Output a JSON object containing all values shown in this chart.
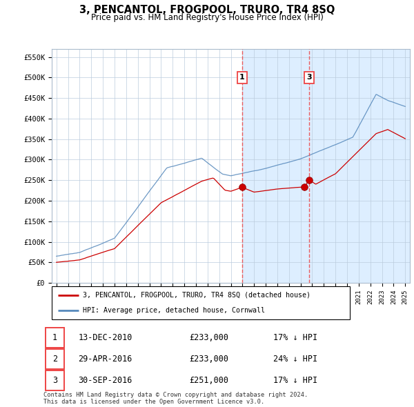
{
  "title": "3, PENCANTOL, FROGPOOL, TRURO, TR4 8SQ",
  "subtitle": "Price paid vs. HM Land Registry's House Price Index (HPI)",
  "ylim": [
    0,
    570000
  ],
  "yticks": [
    0,
    50000,
    100000,
    150000,
    200000,
    250000,
    300000,
    350000,
    400000,
    450000,
    500000,
    550000
  ],
  "ytick_labels": [
    "£0",
    "£50K",
    "£100K",
    "£150K",
    "£200K",
    "£250K",
    "£300K",
    "£350K",
    "£400K",
    "£450K",
    "£500K",
    "£550K"
  ],
  "red_line_color": "#cc0000",
  "blue_line_color": "#5588bb",
  "vline_color": "#ee4444",
  "shade_color": "#ddeeff",
  "legend_label_red": "3, PENCANTOL, FROGPOOL, TRURO, TR4 8SQ (detached house)",
  "legend_label_blue": "HPI: Average price, detached house, Cornwall",
  "transactions": [
    {
      "id": 1,
      "date": "13-DEC-2010",
      "price": 233000,
      "pct": "17%",
      "dir": "↓"
    },
    {
      "id": 2,
      "date": "29-APR-2016",
      "price": 233000,
      "pct": "24%",
      "dir": "↓"
    },
    {
      "id": 3,
      "date": "30-SEP-2016",
      "price": 251000,
      "pct": "17%",
      "dir": "↓"
    }
  ],
  "footer": "Contains HM Land Registry data © Crown copyright and database right 2024.\nThis data is licensed under the Open Government Licence v3.0.",
  "vline1": 2010.96,
  "vline2": 2016.75,
  "sale1_x": 2010.96,
  "sale1_y": 233000,
  "sale2_x": 2016.33,
  "sale2_y": 233000,
  "sale3_x": 2016.75,
  "sale3_y": 251000,
  "xlim_left": 1994.6,
  "xlim_right": 2025.4
}
